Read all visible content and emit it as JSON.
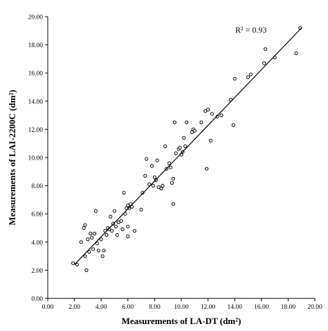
{
  "chart_data": {
    "type": "scatter",
    "xlabel": "Measurements of LA-DT (dm²)",
    "ylabel": "Measurements of LAI-2200C (dm²)",
    "annotation": "R² = 0.93",
    "xlim": [
      0,
      20
    ],
    "ylim": [
      0,
      20
    ],
    "x_ticks": [
      "0.00",
      "2.00",
      "4.00",
      "6.00",
      "8.00",
      "10.00",
      "12.00",
      "14.00",
      "16.00",
      "18.00",
      "20.00"
    ],
    "y_ticks": [
      "0.00",
      "2.00",
      "4.00",
      "6.00",
      "8.00",
      "10.00",
      "12.00",
      "14.00",
      "16.00",
      "18.00",
      "20.00"
    ],
    "grid": false,
    "trendline": {
      "x": [
        2.0,
        19.0
      ],
      "y": [
        2.4,
        19.2
      ]
    },
    "points": [
      [
        1.9,
        2.5
      ],
      [
        2.2,
        2.4
      ],
      [
        2.5,
        4.0
      ],
      [
        2.7,
        5.0
      ],
      [
        2.8,
        5.2
      ],
      [
        2.8,
        3.0
      ],
      [
        2.9,
        2.0
      ],
      [
        3.0,
        4.2
      ],
      [
        3.1,
        3.3
      ],
      [
        3.2,
        4.6
      ],
      [
        3.3,
        4.3
      ],
      [
        3.4,
        3.5
      ],
      [
        3.5,
        4.6
      ],
      [
        3.6,
        6.2
      ],
      [
        3.7,
        3.9
      ],
      [
        3.8,
        3.4
      ],
      [
        4.0,
        4.2
      ],
      [
        4.1,
        3.0
      ],
      [
        4.2,
        3.4
      ],
      [
        4.3,
        4.8
      ],
      [
        4.4,
        4.5
      ],
      [
        4.5,
        5.0
      ],
      [
        4.6,
        4.9
      ],
      [
        4.7,
        5.8
      ],
      [
        4.8,
        4.8
      ],
      [
        4.9,
        5.3
      ],
      [
        5.0,
        6.2
      ],
      [
        5.1,
        5.1
      ],
      [
        5.2,
        4.5
      ],
      [
        5.3,
        5.4
      ],
      [
        5.5,
        5.5
      ],
      [
        5.6,
        4.9
      ],
      [
        5.7,
        7.5
      ],
      [
        5.8,
        6.0
      ],
      [
        5.9,
        6.4
      ],
      [
        6.0,
        6.6
      ],
      [
        6.0,
        5.1
      ],
      [
        6.1,
        6.4
      ],
      [
        6.2,
        6.7
      ],
      [
        6.0,
        4.4
      ],
      [
        6.3,
        6.5
      ],
      [
        6.5,
        4.8
      ],
      [
        7.0,
        6.3
      ],
      [
        7.1,
        7.5
      ],
      [
        7.3,
        8.7
      ],
      [
        7.4,
        9.9
      ],
      [
        7.6,
        8.1
      ],
      [
        7.8,
        9.4
      ],
      [
        7.9,
        8.0
      ],
      [
        8.0,
        8.6
      ],
      [
        8.1,
        8.4
      ],
      [
        8.2,
        9.8
      ],
      [
        8.3,
        7.9
      ],
      [
        8.5,
        7.8
      ],
      [
        8.6,
        8.0
      ],
      [
        8.8,
        10.8
      ],
      [
        8.9,
        9.2
      ],
      [
        9.1,
        9.6
      ],
      [
        9.2,
        9.3
      ],
      [
        9.3,
        8.2
      ],
      [
        9.4,
        8.5
      ],
      [
        9.4,
        6.7
      ],
      [
        9.5,
        12.5
      ],
      [
        9.6,
        10.3
      ],
      [
        9.8,
        10.6
      ],
      [
        9.9,
        10.7
      ],
      [
        10.0,
        10.2
      ],
      [
        10.1,
        10.4
      ],
      [
        10.2,
        11.4
      ],
      [
        10.3,
        10.8
      ],
      [
        10.4,
        12.5
      ],
      [
        10.8,
        11.8
      ],
      [
        10.9,
        12.0
      ],
      [
        11.0,
        11.9
      ],
      [
        11.5,
        12.5
      ],
      [
        11.8,
        13.3
      ],
      [
        11.9,
        9.2
      ],
      [
        12.0,
        13.4
      ],
      [
        12.2,
        11.2
      ],
      [
        12.3,
        13.1
      ],
      [
        12.7,
        12.9
      ],
      [
        13.0,
        13.0
      ],
      [
        13.7,
        14.1
      ],
      [
        13.9,
        12.3
      ],
      [
        14.0,
        15.6
      ],
      [
        15.0,
        15.7
      ],
      [
        15.2,
        15.9
      ],
      [
        16.2,
        16.7
      ],
      [
        16.3,
        17.7
      ],
      [
        17.0,
        17.1
      ],
      [
        18.6,
        17.4
      ],
      [
        18.9,
        19.2
      ]
    ]
  }
}
